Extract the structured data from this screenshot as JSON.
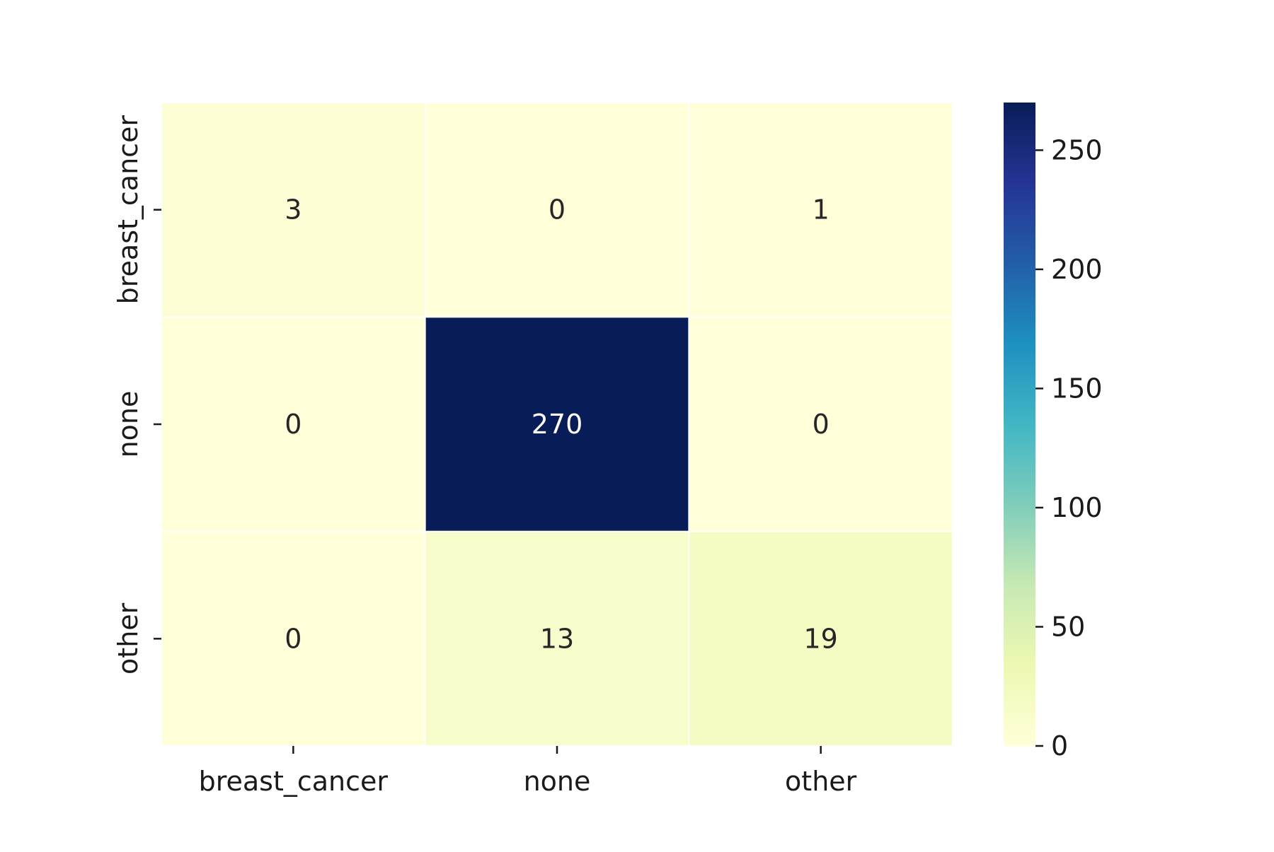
{
  "chart_data": {
    "type": "heatmap",
    "title": "",
    "xlabel": "",
    "ylabel": "",
    "x_categories": [
      "breast_cancer",
      "none",
      "other"
    ],
    "y_categories": [
      "breast_cancer",
      "none",
      "other"
    ],
    "matrix": [
      [
        3,
        0,
        1
      ],
      [
        0,
        270,
        0
      ],
      [
        0,
        13,
        19
      ]
    ],
    "colorbar": {
      "colormap": "YlGnBu",
      "range": [
        0,
        270
      ],
      "ticks": [
        0,
        50,
        100,
        150,
        200,
        250
      ]
    },
    "grid": false,
    "legend": "colorbar-right",
    "colors": {
      "low": "#ffffd9",
      "high": "#081d58",
      "cell_border": "#ffffff",
      "text_dark": "#262626",
      "text_light": "#ffffff"
    }
  }
}
